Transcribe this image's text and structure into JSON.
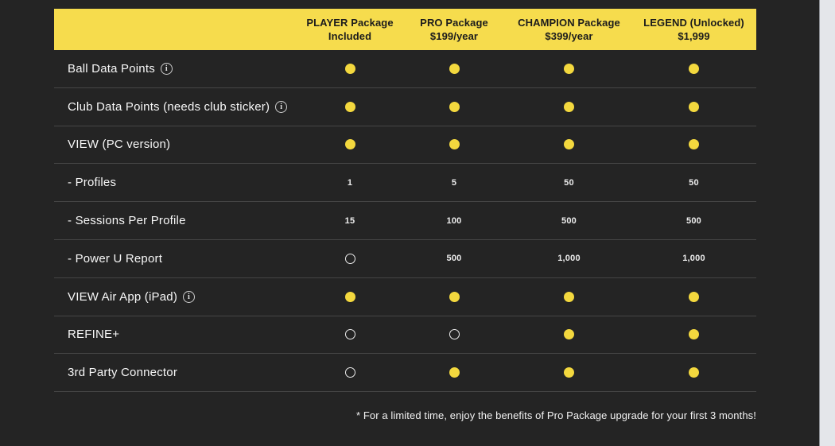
{
  "theme": {
    "background": "#242424",
    "header_background": "#F6DC4D",
    "header_text": "#1C1C1C",
    "row_text": "#F7F7F7",
    "divider": "#454545",
    "included_dot_color": "#F3D83E",
    "not_included_circle_color": "#ECECEC",
    "side_strip_color": "#E4E6EA"
  },
  "icons": {
    "info_glyph": "i",
    "included_dot": "filled-yellow-circle",
    "not_included": "outlined-circle"
  },
  "columns": [
    {
      "title": "PLAYER Package",
      "subtitle": "Included"
    },
    {
      "title": "PRO Package",
      "subtitle": "$199/year"
    },
    {
      "title": "CHAMPION Package",
      "subtitle": "$399/year"
    },
    {
      "title": "LEGEND (Unlocked)",
      "subtitle": "$1,999"
    }
  ],
  "rows": [
    {
      "label": "Ball Data Points",
      "info": true,
      "values": [
        "dot",
        "dot",
        "dot",
        "dot"
      ]
    },
    {
      "label": "Club Data Points (needs club sticker)",
      "info": true,
      "values": [
        "dot",
        "dot",
        "dot",
        "dot"
      ]
    },
    {
      "label": "VIEW (PC version)",
      "info": false,
      "values": [
        "dot",
        "dot",
        "dot",
        "dot"
      ]
    },
    {
      "label": "- Profiles",
      "info": false,
      "values": [
        "1",
        "5",
        "50",
        "50"
      ]
    },
    {
      "label": "- Sessions Per Profile",
      "info": false,
      "values": [
        "15",
        "100",
        "500",
        "500"
      ]
    },
    {
      "label": "- Power U Report",
      "info": false,
      "values": [
        "circle",
        "500",
        "1,000",
        "1,000"
      ]
    },
    {
      "label": "VIEW Air App (iPad)",
      "info": true,
      "values": [
        "dot",
        "dot",
        "dot",
        "dot"
      ]
    },
    {
      "label": "REFINE+",
      "info": false,
      "values": [
        "circle",
        "circle",
        "dot",
        "dot"
      ]
    },
    {
      "label": "3rd Party Connector",
      "info": false,
      "values": [
        "circle",
        "dot",
        "dot",
        "dot"
      ]
    }
  ],
  "footnote": "* For a limited time, enjoy the benefits of Pro Package upgrade for your first 3 months!"
}
